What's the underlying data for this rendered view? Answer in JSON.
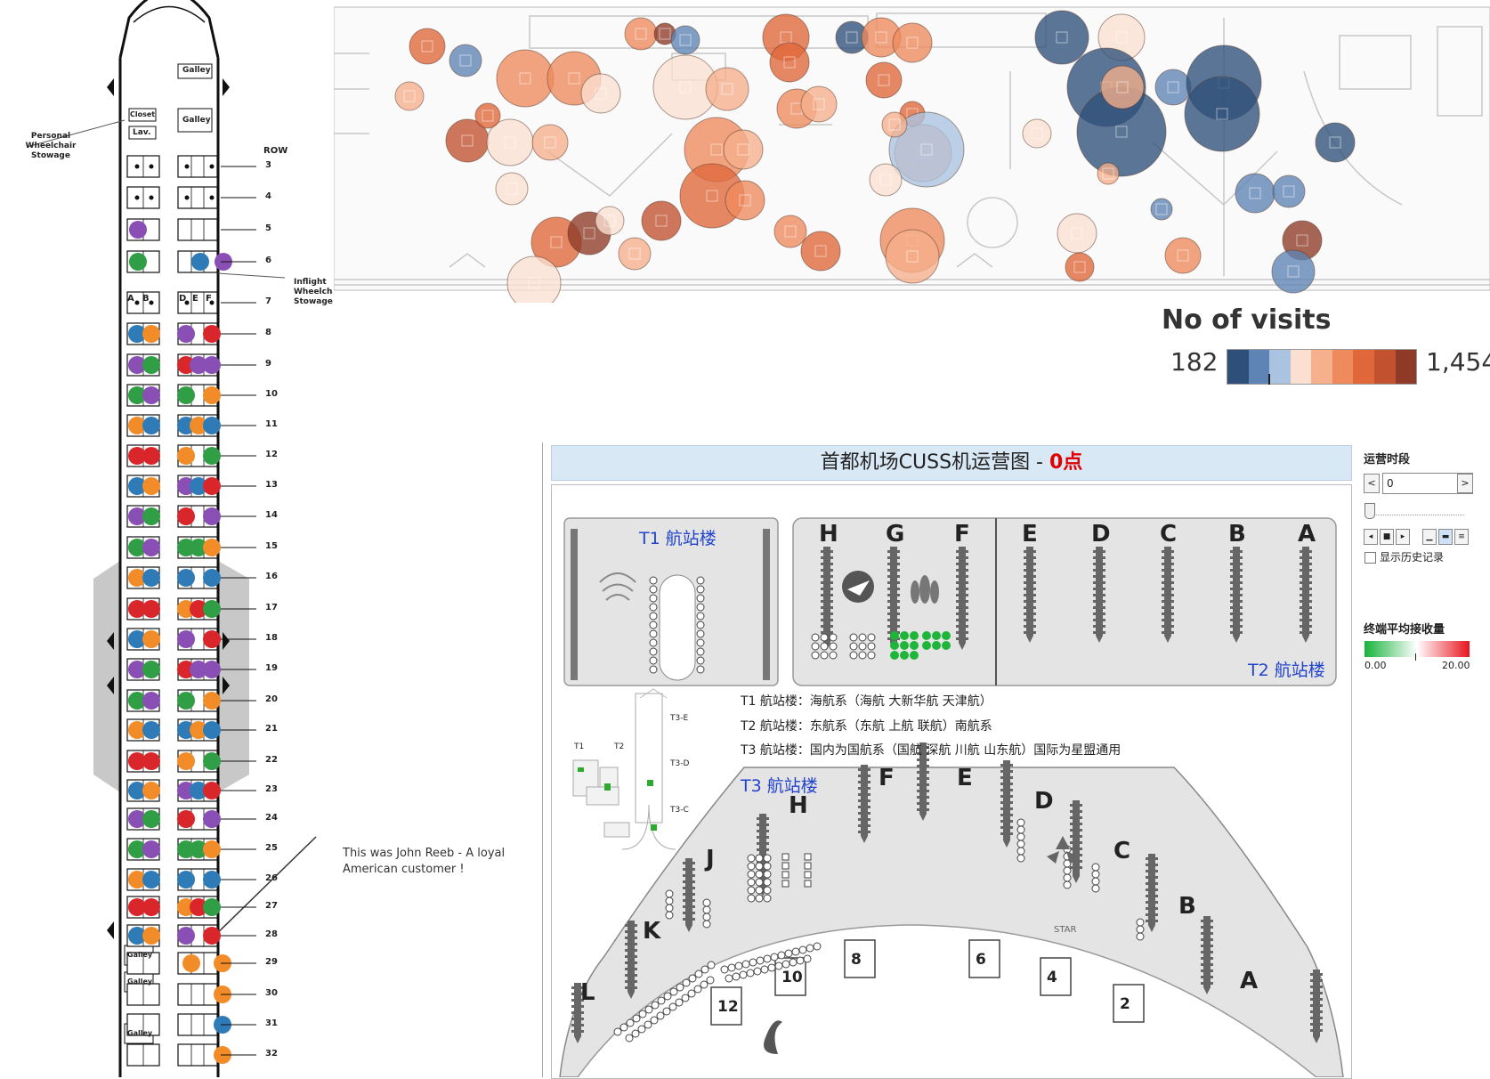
{
  "seat_map": {
    "galley_labels": [
      "Galley",
      "Galley",
      "Galley",
      "Galley",
      "Galley"
    ],
    "lav_label": "Lav.",
    "closet_label": "Closet",
    "personal_wheelchair": "Personal Wheelchair Stowage",
    "inflight_wheelchair": "Inflight Wheelchair Stowage",
    "row_header": "ROW",
    "rows": [
      "3",
      "4",
      "5",
      "6",
      "7",
      "8",
      "9",
      "10",
      "11",
      "12",
      "13",
      "14",
      "15",
      "16",
      "17",
      "18",
      "19",
      "20",
      "21",
      "22",
      "23",
      "24",
      "25",
      "26",
      "27",
      "28",
      "29",
      "30",
      "31",
      "32"
    ],
    "seat_letters_left": [
      "A",
      "B"
    ],
    "seat_letters_right": [
      "D",
      "E",
      "F"
    ],
    "annotation": "This was John Reeb - A loyal American customer !"
  },
  "heatmap": {
    "legend_title": "No of visits",
    "legend_min": "182",
    "legend_max": "1,454",
    "colors": [
      "#2e4f7a",
      "#5d84b5",
      "#a9c3e0",
      "#fbe0d2",
      "#f6b08c",
      "#ee8a5c",
      "#e0673a",
      "#c2512f",
      "#8e3a26"
    ]
  },
  "airport": {
    "title_prefix": "首都机场CUSS机运营图 - ",
    "title_highlight": "0点",
    "t1_label": "T1 航站楼",
    "t2_label": "T2 航站楼",
    "t3_label": "T3 航站楼",
    "t2_piers": [
      "H",
      "G",
      "F",
      "E",
      "D",
      "C",
      "B",
      "A"
    ],
    "t3_piers": [
      "L",
      "K",
      "J",
      "H",
      "F",
      "E",
      "D",
      "C",
      "B",
      "A"
    ],
    "t3_gates": [
      "12",
      "10",
      "8",
      "6",
      "4",
      "2"
    ],
    "legend_lines": [
      "T1 航站楼：海航系（海航 大新华航 天津航）",
      "T2 航站楼：东航系（东航 上航 联航）南航系",
      "T3 航站楼：国内为国航系（国航 深航 川航 山东航）国际为星盟通用"
    ],
    "mini_map_labels": [
      "T1",
      "T2",
      "T3-E",
      "T3-D",
      "T3-C"
    ],
    "star_label": "STAR"
  },
  "controls": {
    "section_title": "运营时段",
    "select_value": "0",
    "history_label": "显示历史记录",
    "gradient_title": "终端平均接收量",
    "gradient_min": "0.00",
    "gradient_max": "20.00"
  }
}
